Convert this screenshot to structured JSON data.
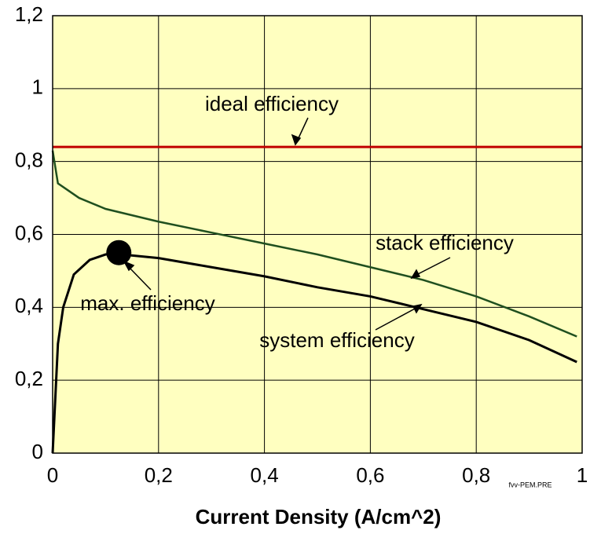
{
  "chart_data": {
    "type": "line",
    "xlabel": "Current Density (A/cm^2)",
    "footnote": "fvv-PEM.PRE",
    "xlim": [
      0,
      1
    ],
    "ylim": [
      0,
      1.2
    ],
    "xticks": [
      0,
      {
        "value": 0.2,
        "label": "0,2"
      },
      {
        "value": 0.4,
        "label": "0,4"
      },
      {
        "value": 0.6,
        "label": "0,6"
      },
      {
        "value": 0.8,
        "label": "0,8"
      },
      1
    ],
    "yticks": [
      0,
      {
        "value": 0.2,
        "label": "0,2"
      },
      {
        "value": 0.4,
        "label": "0,4"
      },
      {
        "value": 0.6,
        "label": "0,6"
      },
      {
        "value": 0.8,
        "label": "0,8"
      },
      1,
      {
        "value": 1.2,
        "label": "1,2"
      }
    ],
    "grid": true,
    "background": "#ffffc0",
    "series": [
      {
        "name": "ideal efficiency",
        "color": "#c00000",
        "x": [
          0,
          1
        ],
        "values": [
          0.84,
          0.84
        ]
      },
      {
        "name": "stack efficiency",
        "color": "#1f4f1f",
        "x": [
          0,
          0.01,
          0.05,
          0.1,
          0.2,
          0.3,
          0.4,
          0.5,
          0.6,
          0.7,
          0.8,
          0.9,
          0.99
        ],
        "values": [
          0.83,
          0.74,
          0.7,
          0.67,
          0.635,
          0.605,
          0.575,
          0.545,
          0.51,
          0.475,
          0.43,
          0.375,
          0.32
        ]
      },
      {
        "name": "system efficiency",
        "color": "#000000",
        "x": [
          0,
          0.005,
          0.01,
          0.02,
          0.04,
          0.07,
          0.1,
          0.13,
          0.2,
          0.3,
          0.4,
          0.5,
          0.6,
          0.7,
          0.8,
          0.9,
          0.99
        ],
        "values": [
          0,
          0.15,
          0.3,
          0.4,
          0.49,
          0.53,
          0.545,
          0.545,
          0.535,
          0.51,
          0.485,
          0.455,
          0.43,
          0.395,
          0.36,
          0.31,
          0.25
        ]
      }
    ],
    "markers": [
      {
        "name": "max. efficiency",
        "x": 0.125,
        "y": 0.55,
        "color": "#000000"
      }
    ]
  }
}
